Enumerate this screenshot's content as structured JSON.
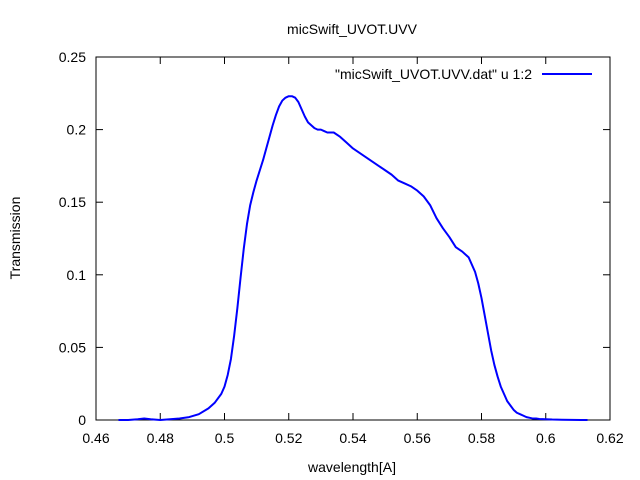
{
  "chart_data": {
    "type": "line",
    "title": "micSwift_UVOT.UVV",
    "xlabel": "wavelength[A]",
    "ylabel": "Transmission",
    "xlim": [
      0.46,
      0.62
    ],
    "ylim": [
      0,
      0.25
    ],
    "xticks": [
      0.46,
      0.48,
      0.5,
      0.52,
      0.54,
      0.56,
      0.58,
      0.6,
      0.62
    ],
    "xtick_labels": [
      "0.46",
      "0.48",
      "0.5",
      "0.52",
      "0.54",
      "0.56",
      "0.58",
      "0.6",
      "0.62"
    ],
    "yticks": [
      0,
      0.05,
      0.1,
      0.15,
      0.2,
      0.25
    ],
    "ytick_labels": [
      "0",
      "0.05",
      "0.1",
      "0.15",
      "0.2",
      "0.25"
    ],
    "grid": false,
    "legend_position": "top-right",
    "series": [
      {
        "name": "\"micSwift_UVOT.UVV.dat\" u 1:2",
        "color": "#0000ff",
        "x": [
          0.467,
          0.47,
          0.473,
          0.475,
          0.477,
          0.48,
          0.483,
          0.486,
          0.489,
          0.492,
          0.495,
          0.497,
          0.499,
          0.5,
          0.501,
          0.502,
          0.503,
          0.504,
          0.505,
          0.506,
          0.507,
          0.508,
          0.509,
          0.51,
          0.511,
          0.512,
          0.513,
          0.514,
          0.515,
          0.516,
          0.517,
          0.518,
          0.519,
          0.52,
          0.521,
          0.522,
          0.523,
          0.524,
          0.525,
          0.526,
          0.527,
          0.528,
          0.529,
          0.53,
          0.531,
          0.532,
          0.534,
          0.536,
          0.538,
          0.54,
          0.542,
          0.544,
          0.546,
          0.548,
          0.55,
          0.552,
          0.554,
          0.556,
          0.558,
          0.56,
          0.562,
          0.564,
          0.566,
          0.568,
          0.57,
          0.572,
          0.574,
          0.576,
          0.578,
          0.579,
          0.58,
          0.581,
          0.582,
          0.583,
          0.584,
          0.585,
          0.586,
          0.587,
          0.588,
          0.589,
          0.59,
          0.591,
          0.592,
          0.593,
          0.594,
          0.595,
          0.596,
          0.597,
          0.598,
          0.6,
          0.602,
          0.605,
          0.608,
          0.611,
          0.613
        ],
        "y": [
          0.0,
          0.0,
          0.0005,
          0.001,
          0.0005,
          0.0,
          0.0005,
          0.001,
          0.002,
          0.004,
          0.008,
          0.012,
          0.018,
          0.023,
          0.031,
          0.042,
          0.058,
          0.077,
          0.098,
          0.118,
          0.135,
          0.148,
          0.157,
          0.165,
          0.172,
          0.179,
          0.187,
          0.195,
          0.203,
          0.21,
          0.216,
          0.22,
          0.222,
          0.223,
          0.223,
          0.222,
          0.219,
          0.214,
          0.209,
          0.205,
          0.203,
          0.201,
          0.2,
          0.2,
          0.199,
          0.198,
          0.198,
          0.195,
          0.191,
          0.187,
          0.184,
          0.181,
          0.178,
          0.175,
          0.172,
          0.169,
          0.165,
          0.163,
          0.161,
          0.158,
          0.154,
          0.148,
          0.139,
          0.132,
          0.126,
          0.119,
          0.116,
          0.112,
          0.102,
          0.094,
          0.084,
          0.072,
          0.06,
          0.048,
          0.038,
          0.03,
          0.023,
          0.018,
          0.013,
          0.01,
          0.007,
          0.005,
          0.004,
          0.003,
          0.002,
          0.0015,
          0.001,
          0.001,
          0.0007,
          0.0005,
          0.0003,
          0.0002,
          0.0001,
          0.0,
          0.0
        ]
      }
    ]
  }
}
